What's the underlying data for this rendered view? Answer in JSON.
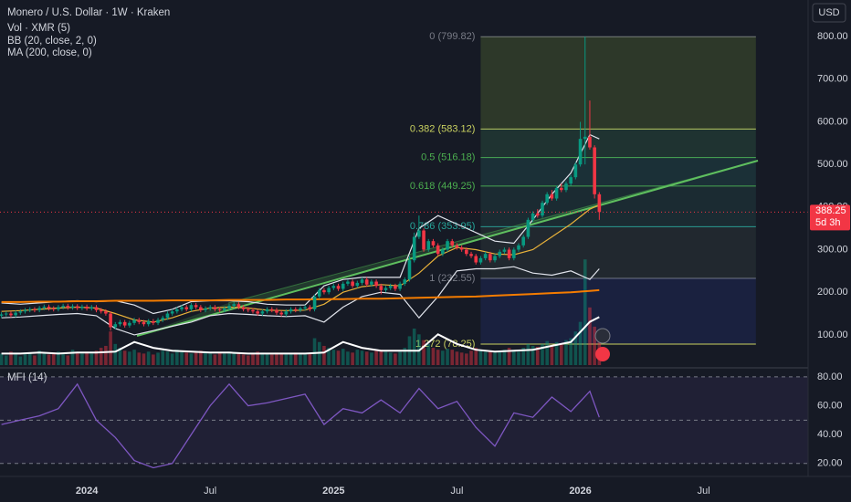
{
  "currency_button": "USD",
  "chart_data": [
    {
      "type": "candlestick",
      "title": "Monero / U.S. Dollar · 1W · Kraken",
      "indicators": [
        "Vol · XMR (5)",
        "BB (20, close, 2, 0)",
        "MA (200, close, 0)"
      ],
      "xlim": [
        -0.3,
        170
      ],
      "xticks": [
        {
          "value": 18,
          "label": "2024"
        },
        {
          "value": 44,
          "label": "Jul"
        },
        {
          "value": 70,
          "label": "2025"
        },
        {
          "value": 96,
          "label": "Jul"
        },
        {
          "value": 122,
          "label": "2026"
        },
        {
          "value": 148,
          "label": "Jul"
        }
      ],
      "ylim": [
        29,
        886
      ],
      "yticks": [
        {
          "value": 100,
          "label": "100.00"
        },
        {
          "value": 200,
          "label": "200.00"
        },
        {
          "value": 300,
          "label": "300.00"
        },
        {
          "value": 400,
          "label": "400.00"
        },
        {
          "value": 500,
          "label": "500.00"
        },
        {
          "value": 600,
          "label": "600.00"
        },
        {
          "value": 700,
          "label": "700.00"
        },
        {
          "value": 800,
          "label": "800.00"
        }
      ],
      "grid": false,
      "up_color": "#089981",
      "down_color": "#f23645",
      "open": [
        145,
        148,
        150,
        146,
        152,
        155,
        158,
        160,
        158,
        163,
        166,
        162,
        160,
        165,
        168,
        164,
        167,
        163,
        166,
        162,
        165,
        158,
        155,
        150,
        118,
        125,
        130,
        122,
        128,
        135,
        130,
        125,
        132,
        128,
        135,
        140,
        150,
        155,
        160,
        165,
        160,
        170,
        165,
        158,
        162,
        165,
        160,
        158,
        162,
        168,
        172,
        165,
        160,
        158,
        155,
        150,
        155,
        160,
        158,
        152,
        148,
        155,
        160,
        158,
        162,
        165,
        160,
        190,
        205,
        200,
        210,
        215,
        208,
        220,
        225,
        215,
        222,
        230,
        218,
        225,
        215,
        205,
        210,
        215,
        208,
        220,
        230,
        275,
        330,
        345,
        300,
        320,
        310,
        290,
        300,
        320,
        310,
        305,
        300,
        290,
        285,
        270,
        280,
        290,
        275,
        285,
        295,
        300,
        280,
        300,
        310,
        330,
        370,
        385,
        380,
        410,
        430,
        420,
        445,
        440,
        455,
        470,
        500,
        560,
        565,
        540,
        430
      ],
      "high": [
        153,
        155,
        155,
        157,
        160,
        163,
        165,
        165,
        168,
        171,
        171,
        167,
        170,
        173,
        173,
        172,
        172,
        171,
        171,
        170,
        170,
        163,
        160,
        155,
        130,
        135,
        135,
        133,
        140,
        140,
        135,
        137,
        137,
        140,
        145,
        155,
        160,
        165,
        170,
        170,
        175,
        175,
        170,
        167,
        170,
        170,
        165,
        167,
        173,
        177,
        177,
        170,
        165,
        163,
        160,
        160,
        165,
        165,
        163,
        157,
        160,
        165,
        165,
        167,
        170,
        170,
        195,
        210,
        210,
        215,
        220,
        220,
        225,
        230,
        230,
        227,
        235,
        235,
        230,
        230,
        220,
        215,
        220,
        220,
        225,
        235,
        285,
        340,
        380,
        350,
        325,
        325,
        315,
        305,
        325,
        325,
        315,
        310,
        305,
        295,
        290,
        285,
        295,
        295,
        290,
        300,
        305,
        305,
        305,
        315,
        335,
        375,
        390,
        395,
        415,
        435,
        440,
        450,
        455,
        460,
        475,
        505,
        600,
        800,
        650,
        545,
        435
      ],
      "low": [
        140,
        143,
        141,
        141,
        147,
        150,
        153,
        153,
        153,
        158,
        157,
        155,
        155,
        160,
        159,
        159,
        158,
        158,
        157,
        157,
        153,
        150,
        145,
        110,
        113,
        120,
        117,
        117,
        123,
        125,
        120,
        120,
        123,
        123,
        130,
        135,
        145,
        150,
        155,
        155,
        155,
        160,
        153,
        153,
        157,
        155,
        153,
        153,
        157,
        163,
        160,
        155,
        153,
        150,
        145,
        145,
        150,
        153,
        147,
        143,
        143,
        150,
        153,
        153,
        157,
        155,
        155,
        185,
        195,
        195,
        205,
        203,
        203,
        215,
        210,
        210,
        217,
        213,
        213,
        210,
        195,
        200,
        205,
        203,
        203,
        215,
        225,
        270,
        325,
        295,
        295,
        305,
        285,
        285,
        295,
        305,
        300,
        295,
        285,
        280,
        265,
        265,
        275,
        270,
        270,
        280,
        290,
        275,
        275,
        295,
        305,
        325,
        365,
        375,
        375,
        405,
        415,
        415,
        435,
        435,
        450,
        465,
        495,
        500,
        535,
        420,
        370
      ],
      "close": [
        148,
        150,
        146,
        152,
        155,
        158,
        160,
        158,
        163,
        166,
        162,
        160,
        165,
        168,
        164,
        167,
        163,
        166,
        162,
        165,
        158,
        155,
        150,
        118,
        125,
        130,
        122,
        128,
        135,
        130,
        125,
        132,
        128,
        135,
        140,
        150,
        155,
        160,
        165,
        160,
        170,
        165,
        158,
        162,
        165,
        160,
        158,
        162,
        168,
        172,
        165,
        160,
        158,
        155,
        150,
        155,
        160,
        158,
        152,
        148,
        155,
        160,
        158,
        162,
        165,
        160,
        190,
        205,
        200,
        210,
        215,
        208,
        220,
        225,
        215,
        222,
        230,
        218,
        225,
        215,
        205,
        210,
        215,
        208,
        220,
        230,
        275,
        330,
        345,
        300,
        320,
        310,
        290,
        300,
        320,
        310,
        305,
        300,
        290,
        285,
        270,
        280,
        290,
        275,
        285,
        295,
        300,
        280,
        300,
        310,
        330,
        370,
        385,
        380,
        410,
        430,
        420,
        445,
        440,
        455,
        470,
        500,
        560,
        565,
        540,
        430,
        388.25
      ],
      "volume": [
        12,
        10,
        14,
        11,
        9,
        13,
        12,
        10,
        15,
        12,
        11,
        13,
        14,
        12,
        10,
        16,
        13,
        12,
        14,
        12,
        15,
        18,
        20,
        35,
        22,
        18,
        15,
        14,
        16,
        13,
        12,
        14,
        11,
        13,
        15,
        14,
        12,
        16,
        15,
        13,
        12,
        14,
        15,
        13,
        12,
        11,
        13,
        12,
        14,
        13,
        12,
        11,
        10,
        12,
        14,
        13,
        12,
        11,
        13,
        12,
        11,
        12,
        13,
        12,
        11,
        12,
        28,
        24,
        20,
        18,
        16,
        15,
        17,
        14,
        13,
        16,
        15,
        14,
        13,
        15,
        16,
        14,
        13,
        12,
        14,
        18,
        30,
        38,
        32,
        26,
        22,
        18,
        16,
        15,
        17,
        16,
        14,
        13,
        12,
        15,
        18,
        16,
        14,
        15,
        13,
        14,
        16,
        18,
        15,
        14,
        18,
        22,
        20,
        19,
        22,
        25,
        20,
        24,
        22,
        26,
        28,
        35,
        45,
        110,
        60,
        40,
        25
      ],
      "volume_ylim": [
        0,
        380
      ],
      "line_x": [
        0,
        4,
        8,
        12,
        16,
        20,
        24,
        28,
        32,
        36,
        40,
        44,
        48,
        52,
        56,
        60,
        64,
        68,
        72,
        76,
        80,
        84,
        88,
        92,
        96,
        100,
        104,
        108,
        112,
        116,
        120,
        124,
        126
      ],
      "volume_ma": {
        "color": "#ffffff",
        "values": [
          12,
          12,
          13,
          12,
          13,
          13,
          14,
          24,
          18,
          15,
          14,
          13,
          13,
          12,
          12,
          12,
          12,
          13,
          24,
          18,
          15,
          15,
          15,
          32,
          22,
          16,
          14,
          15,
          16,
          20,
          24,
          45,
          50
        ]
      },
      "lines": [
        {
          "color": "#e0e3eb",
          "values": [
            175,
            172,
            175,
            178,
            180,
            178,
            180,
            170,
            150,
            160,
            178,
            180,
            180,
            178,
            172,
            170,
            170,
            215,
            230,
            235,
            235,
            235,
            350,
            380,
            360,
            340,
            320,
            315,
            370,
            430,
            480,
            570,
            560
          ]
        },
        {
          "color": "#e0e3eb",
          "values": [
            140,
            142,
            145,
            148,
            150,
            145,
            115,
            100,
            110,
            120,
            130,
            145,
            150,
            148,
            145,
            143,
            145,
            130,
            165,
            190,
            200,
            195,
            140,
            190,
            250,
            255,
            255,
            260,
            245,
            240,
            250,
            230,
            255
          ]
        },
        {
          "color": "#e8b13a",
          "values": [
            155,
            157,
            160,
            163,
            165,
            163,
            150,
            135,
            130,
            140,
            155,
            163,
            165,
            163,
            158,
            157,
            158,
            172,
            200,
            213,
            218,
            215,
            245,
            285,
            305,
            300,
            290,
            288,
            300,
            330,
            360,
            395,
            405
          ]
        },
        {
          "color": "#f57c00",
          "values": [
            177,
            177,
            178,
            178,
            179,
            179,
            180,
            180,
            180,
            181,
            181,
            181,
            182,
            182,
            182,
            183,
            183,
            184,
            184,
            185,
            185,
            186,
            187,
            188,
            189,
            190,
            192,
            194,
            196,
            198,
            200,
            203,
            205
          ]
        }
      ],
      "fib": {
        "x_start": 101,
        "x_end": 159,
        "levels": [
          {
            "value": 799.82,
            "label": "0 (799.82)",
            "color": "#787b86"
          },
          {
            "value": 583.12,
            "label": "0.382 (583.12)",
            "color": "#c9d160",
            "zone_color": "#81a53c"
          },
          {
            "value": 516.18,
            "label": "0.5 (516.18)",
            "color": "#4caf50",
            "zone_color": "#3f8f5f"
          },
          {
            "value": 449.25,
            "label": "0.618 (449.25)",
            "color": "#4caf50",
            "zone_color": "#2f7f7a"
          },
          {
            "value": 353.95,
            "label": "0.786 (353.95)",
            "color": "#26a69a",
            "zone_color": "#2d6b66"
          },
          {
            "value": 232.55,
            "label": "1 (232.55)",
            "color": "#787b86",
            "zone_color": "#4a5a58"
          },
          {
            "value": 78.25,
            "label": "1.272 (78.25)",
            "color": "#c9d160",
            "zone_color": "#2a3aa0"
          }
        ]
      },
      "last_price": {
        "value": 388.25,
        "countdown": "5d 3h",
        "color": "#f23645"
      }
    },
    {
      "type": "line",
      "title": "MFI (14)",
      "color": "#7e57c2",
      "x": [
        0,
        4,
        8,
        12,
        16,
        20,
        24,
        28,
        32,
        36,
        40,
        44,
        48,
        52,
        56,
        60,
        64,
        68,
        72,
        76,
        80,
        84,
        88,
        92,
        96,
        100,
        104,
        108,
        112,
        116,
        120,
        124,
        126
      ],
      "values": [
        47,
        50,
        53,
        58,
        75,
        50,
        38,
        22,
        17,
        20,
        40,
        60,
        75,
        60,
        62,
        65,
        68,
        47,
        58,
        55,
        64,
        55,
        72,
        58,
        63,
        45,
        32,
        55,
        52,
        66,
        56,
        70,
        52
      ],
      "ylim": [
        11,
        85
      ],
      "yticks": [
        {
          "value": 20,
          "label": "20.00"
        },
        {
          "value": 40,
          "label": "40.00"
        },
        {
          "value": 60,
          "label": "60.00"
        },
        {
          "value": 80,
          "label": "80.00"
        }
      ],
      "bands": [
        20,
        50,
        80
      ]
    }
  ]
}
